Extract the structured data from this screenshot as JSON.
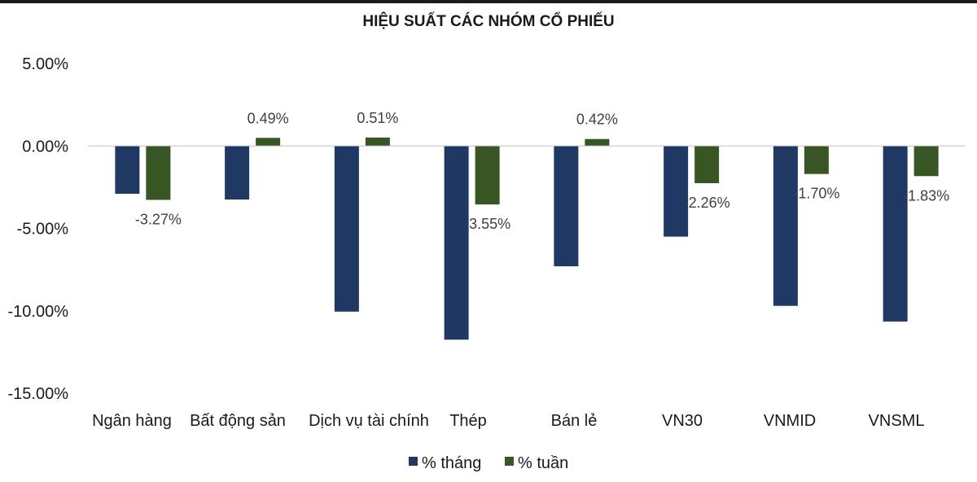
{
  "chart_data": {
    "type": "bar",
    "title": "HIỆU SUẤT CÁC NHÓM CỔ PHIẾU",
    "categories": [
      "Ngân hàng",
      "Bất động sản",
      "Dịch vụ tài chính",
      "Thép",
      "Bán lẻ",
      "VN30",
      "VNMID",
      "VNSML"
    ],
    "series": [
      {
        "name": "% tháng",
        "color": "#1f3864",
        "values": [
          -2.9,
          -3.25,
          -10.05,
          -11.75,
          -7.3,
          -5.5,
          -9.7,
          -10.65
        ],
        "data_labels": [
          null,
          null,
          null,
          null,
          null,
          null,
          null,
          null
        ]
      },
      {
        "name": "% tuần",
        "color": "#375623",
        "values": [
          -3.27,
          0.49,
          0.51,
          -3.55,
          0.42,
          -2.26,
          -1.7,
          -1.83
        ],
        "data_labels": [
          "-3.27%",
          "0.49%",
          "0.51%",
          "-3.55%",
          "0.42%",
          "-2.26%",
          "-1.70%",
          "-1.83%"
        ]
      }
    ],
    "ylim": [
      -15,
      5
    ],
    "yticks": [
      5,
      0,
      -5,
      -10,
      -15
    ],
    "ytick_labels": [
      "5.00%",
      "0.00%",
      "-5.00%",
      "-10.00%",
      "-15.00%"
    ],
    "xlabel": "",
    "ylabel": "",
    "grid": false,
    "legend_position": "bottom"
  }
}
